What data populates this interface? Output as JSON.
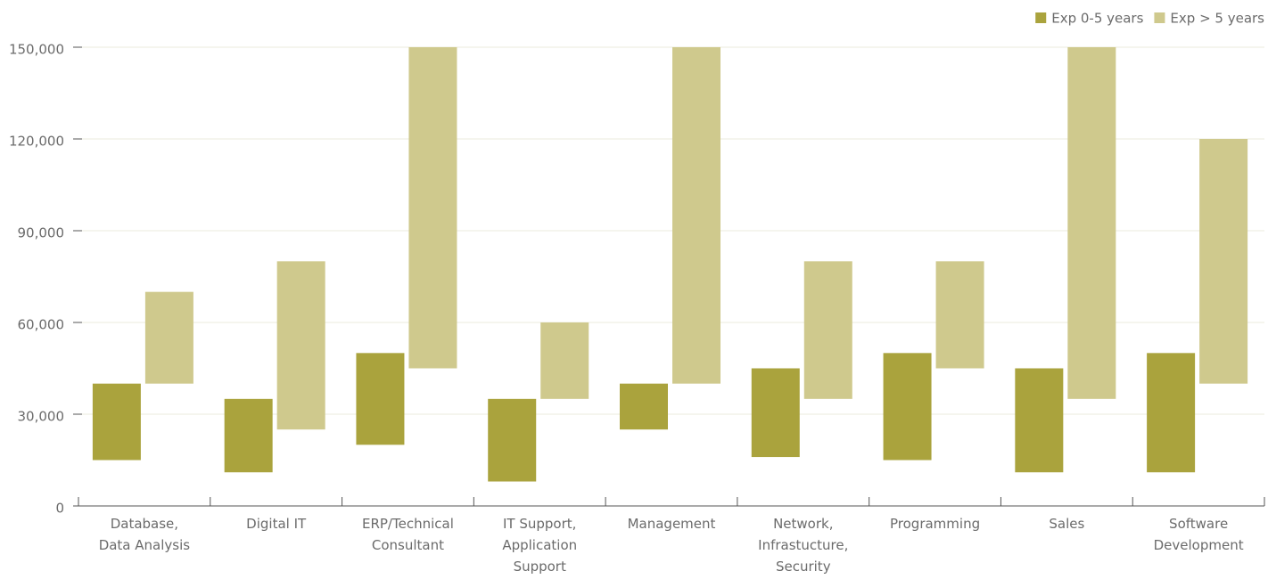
{
  "chart_data": {
    "type": "floating-bar",
    "categories": [
      [
        "Database,",
        "Data Analysis"
      ],
      [
        "Digital IT"
      ],
      [
        "ERP/Technical",
        "Consultant"
      ],
      [
        "IT Support,",
        "Application",
        "Support"
      ],
      [
        "Management"
      ],
      [
        "Network,",
        "Infrastucture,",
        "Security"
      ],
      [
        "Programming"
      ],
      [
        "Sales"
      ],
      [
        "Software",
        "Development"
      ]
    ],
    "series": [
      {
        "name": "Exp 0-5 years",
        "color": "#aaa33d",
        "low": [
          15000,
          11000,
          20000,
          8000,
          25000,
          16000,
          15000,
          11000,
          11000
        ],
        "high": [
          40000,
          35000,
          50000,
          35000,
          40000,
          45000,
          50000,
          45000,
          50000
        ]
      },
      {
        "name": "Exp > 5 years",
        "color": "#cfc98d",
        "low": [
          40000,
          25000,
          45000,
          35000,
          40000,
          35000,
          45000,
          35000,
          40000
        ],
        "high": [
          70000,
          80000,
          150000,
          60000,
          150000,
          80000,
          80000,
          150000,
          120000
        ]
      }
    ],
    "ylim": [
      0,
      150000
    ],
    "yticks": [
      0,
      {
        "value": 30000,
        "label": "30,000"
      },
      {
        "value": 60000,
        "label": "60,000"
      },
      {
        "value": 90000,
        "label": "90,000"
      },
      {
        "value": 120000,
        "label": "120,000"
      },
      {
        "value": 150000,
        "label": "150,000"
      }
    ],
    "grid": true,
    "legend": "top-right"
  }
}
